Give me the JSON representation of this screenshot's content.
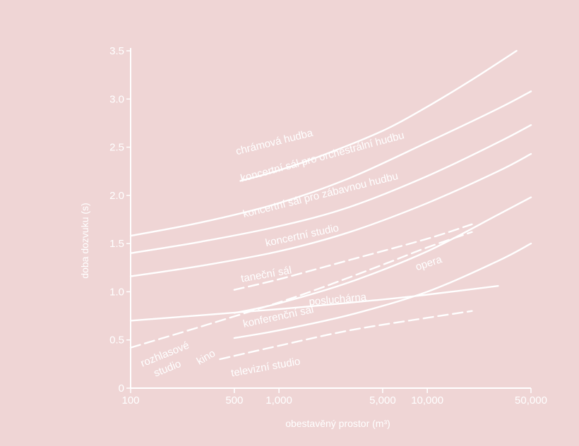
{
  "chart_data": {
    "type": "line",
    "xlabel": "obestavěný prostor (m³)",
    "ylabel": "doba dozvuku (s)",
    "x_scale": "log",
    "xlim": [
      100,
      50000
    ],
    "ylim": [
      0,
      3.5
    ],
    "x_ticks": [
      {
        "value": 100,
        "label": "100"
      },
      {
        "value": 500,
        "label": "500"
      },
      {
        "value": 1000,
        "label": "1,000"
      },
      {
        "value": 5000,
        "label": "5,000"
      },
      {
        "value": 10000,
        "label": "10,000"
      },
      {
        "value": 50000,
        "label": "50,000"
      }
    ],
    "y_ticks": [
      {
        "value": 0,
        "label": "0"
      },
      {
        "value": 0.5,
        "label": "0.5"
      },
      {
        "value": 1.0,
        "label": "1.0"
      },
      {
        "value": 1.5,
        "label": "1.5"
      },
      {
        "value": 2.0,
        "label": "2.0"
      },
      {
        "value": 2.5,
        "label": "2.5"
      },
      {
        "value": 3.0,
        "label": "3.0"
      },
      {
        "value": 3.5,
        "label": "3.5"
      }
    ],
    "grid": false,
    "series": [
      {
        "name": "chrámová hudba",
        "style": "solid",
        "points": [
          [
            550,
            2.15
          ],
          [
            1000,
            2.26
          ],
          [
            2000,
            2.42
          ],
          [
            5000,
            2.67
          ],
          [
            10000,
            2.92
          ],
          [
            20000,
            3.2
          ],
          [
            40000,
            3.5
          ]
        ]
      },
      {
        "name": "koncertní sál pro orchestrální hudbu",
        "style": "solid",
        "points": [
          [
            100,
            1.58
          ],
          [
            300,
            1.72
          ],
          [
            1000,
            1.92
          ],
          [
            3000,
            2.18
          ],
          [
            10000,
            2.55
          ],
          [
            30000,
            2.9
          ],
          [
            50000,
            3.08
          ]
        ]
      },
      {
        "name": "koncertní sál pro zábavnou hudbu",
        "style": "solid",
        "points": [
          [
            100,
            1.4
          ],
          [
            300,
            1.52
          ],
          [
            1000,
            1.68
          ],
          [
            3000,
            1.88
          ],
          [
            10000,
            2.2
          ],
          [
            30000,
            2.55
          ],
          [
            50000,
            2.73
          ]
        ]
      },
      {
        "name": "koncertní studio",
        "style": "solid",
        "points": [
          [
            100,
            1.16
          ],
          [
            300,
            1.27
          ],
          [
            1000,
            1.42
          ],
          [
            3000,
            1.62
          ],
          [
            10000,
            1.92
          ],
          [
            30000,
            2.25
          ],
          [
            50000,
            2.43
          ]
        ]
      },
      {
        "name": "taneční sál",
        "style": "dashed",
        "points": [
          [
            500,
            1.02
          ],
          [
            1000,
            1.13
          ],
          [
            3000,
            1.33
          ],
          [
            10000,
            1.55
          ],
          [
            20000,
            1.7
          ]
        ]
      },
      {
        "name": "rozhlasové studio",
        "style": "dashed",
        "points": [
          [
            100,
            0.42
          ],
          [
            300,
            0.64
          ],
          [
            1000,
            0.89
          ],
          [
            2000,
            1.05
          ],
          [
            5000,
            1.28
          ],
          [
            10000,
            1.46
          ],
          [
            20000,
            1.62
          ]
        ]
      },
      {
        "name": "opera",
        "style": "solid",
        "points": [
          [
            500,
            0.78
          ],
          [
            1000,
            0.88
          ],
          [
            3000,
            1.1
          ],
          [
            10000,
            1.42
          ],
          [
            30000,
            1.8
          ],
          [
            50000,
            1.98
          ]
        ]
      },
      {
        "name": "posluchárna",
        "style": "solid",
        "points": [
          [
            100,
            0.7
          ],
          [
            1000,
            0.82
          ],
          [
            5000,
            0.92
          ],
          [
            10000,
            0.97
          ],
          [
            30000,
            1.06
          ]
        ]
      },
      {
        "name": "konferenční sál",
        "style": "solid",
        "points": [
          [
            500,
            0.52
          ],
          [
            1000,
            0.6
          ],
          [
            3000,
            0.76
          ],
          [
            10000,
            1.0
          ],
          [
            30000,
            1.32
          ],
          [
            50000,
            1.5
          ]
        ]
      },
      {
        "name": "kino",
        "style": "dashed",
        "points": [
          [
            400,
            0.3
          ],
          [
            1000,
            0.44
          ],
          [
            3000,
            0.6
          ],
          [
            10000,
            0.73
          ],
          [
            20000,
            0.8
          ]
        ]
      },
      {
        "name": "televizní studio",
        "style": "none",
        "points": []
      }
    ]
  }
}
